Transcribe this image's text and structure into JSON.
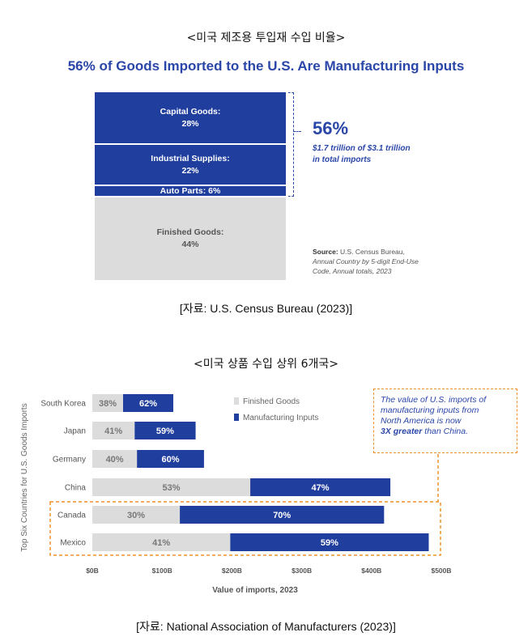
{
  "top": {
    "heading": "<미국 제조용 투입재 수입 비율>",
    "title": "56% of Goods Imported to the U.S. Are Manufacturing Inputs",
    "callout": {
      "percent": "56%",
      "line1": "$1.7 trillion of $3.1 trillion",
      "line2": "in total imports"
    },
    "source": {
      "label": "Source:",
      "line1": "U.S. Census Bureau,",
      "line2": "Annual Country by 5-digit End-Use",
      "line3": "Code, Annual totals, 2023"
    },
    "caption": "[자료: U.S. Census Bureau (2023)]"
  },
  "bottom": {
    "heading": "<미국 상품 수입 상위 6개국>",
    "caption": "[자료: National Association of Manufacturers (2023)]",
    "annotation": {
      "line1": "The value of U.S. imports of",
      "line2": "manufacturing inputs from",
      "line3": "North America is now",
      "emph": "3X greater",
      "line4": " than China."
    }
  },
  "colors": {
    "blue": "#203e9e",
    "gray": "#dcdcdc",
    "title_blue": "#2a46a8",
    "orange": "#f0902a"
  },
  "chart_data": [
    {
      "type": "bar",
      "orientation": "stacked-vertical",
      "title": "56% of Goods Imported to the U.S. Are Manufacturing Inputs",
      "segments": [
        {
          "name": "Capital Goods:",
          "label": "28%",
          "value": 28,
          "group": "Manufacturing Inputs"
        },
        {
          "name": "Industrial Supplies:",
          "label": "22%",
          "value": 22,
          "group": "Manufacturing Inputs"
        },
        {
          "name": "Auto Parts:",
          "label": "6%",
          "value": 6,
          "group": "Manufacturing Inputs"
        },
        {
          "name": "Finished Goods:",
          "label": "44%",
          "value": 44,
          "group": "Finished Goods"
        }
      ]
    },
    {
      "type": "bar",
      "orientation": "horizontal-stacked",
      "ylabel": "Top Six Countries for U.S. Goods Imports",
      "xlabel": "Value of imports, 2023",
      "xlim": [
        0,
        500
      ],
      "x_ticks": [
        "$0B",
        "$100B",
        "$200B",
        "$300B",
        "$400B",
        "$500B"
      ],
      "categories": [
        "South Korea",
        "Japan",
        "Germany",
        "China",
        "Canada",
        "Mexico"
      ],
      "totals_billions": [
        116,
        148,
        160,
        427,
        418,
        482
      ],
      "series": [
        {
          "name": "Finished Goods",
          "percent": [
            38,
            41,
            40,
            53,
            30,
            41
          ],
          "labels": [
            "38%",
            "41%",
            "40%",
            "53%",
            "30%",
            "41%"
          ]
        },
        {
          "name": "Manufacturing Inputs",
          "percent": [
            62,
            59,
            60,
            47,
            70,
            59
          ],
          "labels": [
            "62%",
            "59%",
            "60%",
            "47%",
            "70%",
            "59%"
          ]
        }
      ],
      "legend": [
        "Finished Goods",
        "Manufacturing Inputs"
      ],
      "legend_position": "top-right",
      "highlight_categories": [
        "Canada",
        "Mexico"
      ]
    }
  ]
}
